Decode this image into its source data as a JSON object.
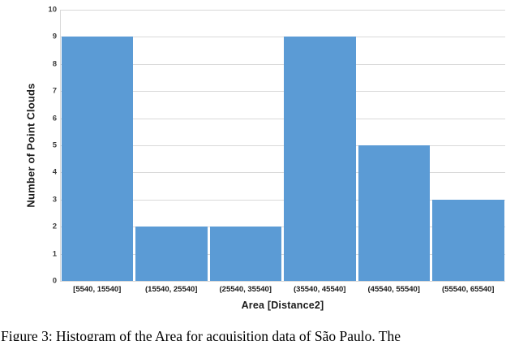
{
  "figure": {
    "caption": "Figure 3: Histogram of the Area for acquisition data of São Paulo. The"
  },
  "chart_data": {
    "type": "bar",
    "subtype": "histogram",
    "title": "",
    "categories": [
      "[5540, 15540]",
      "(15540, 25540]",
      "(25540, 35540]",
      "(35540, 45540]",
      "(45540, 55540]",
      "(55540, 65540]"
    ],
    "values": [
      9,
      2,
      2,
      9,
      5,
      3
    ],
    "xlabel": "Area [Distance2]",
    "ylabel": "Number of Point Clouds",
    "ylim": [
      0,
      10
    ],
    "yticks": [
      0,
      1,
      2,
      3,
      4,
      5,
      6,
      7,
      8,
      9,
      10
    ],
    "grid": "horizontal",
    "legend": "none",
    "colors": {
      "bar": "#5b9bd5",
      "gridline": "#d9d9d9",
      "axis_line": "#d9d9d9",
      "tick_text": "#3d3d3d",
      "label_text": "#1a1a1a",
      "background": "#ffffff"
    }
  }
}
